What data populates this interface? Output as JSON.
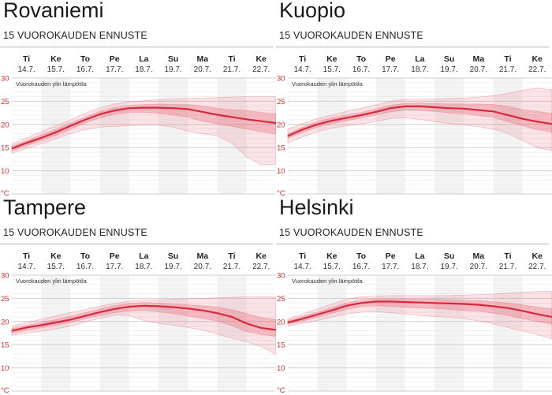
{
  "panels": [
    {
      "title": "Rovaniemi",
      "subtitle": "15 VUOROKAUDEN ENNUSTE"
    },
    {
      "title": "Kuopio",
      "subtitle": "15 VUOROKAUDEN ENNUSTE"
    },
    {
      "title": "Tampere",
      "subtitle": "15 VUOROKAUDEN ENNUSTE"
    },
    {
      "title": "Helsinki",
      "subtitle": "15 VUOROKAUDEN ENNUSTE"
    }
  ],
  "colors": {
    "line": "#d8283c",
    "band": "#e8586a",
    "axis": "#d32f2f",
    "shade": "#f3f3f3",
    "grid": "#dddddd"
  },
  "chart_data": [
    {
      "type": "line",
      "chart_label": "Vuorokauden ylin lämpötila",
      "days": [
        "Ti",
        "Ke",
        "To",
        "Pe",
        "La",
        "Su",
        "Ma",
        "Ti",
        "Ke"
      ],
      "dates": [
        "14.7.",
        "15.7.",
        "16.7.",
        "17.7.",
        "18.7.",
        "19.7.",
        "20.7.",
        "21.7.",
        "22.7."
      ],
      "yticks": [
        "30",
        "25",
        "20",
        "15",
        "10"
      ],
      "unit": "°C",
      "ylim": [
        5,
        30
      ],
      "x": [
        0,
        0.5,
        1,
        1.5,
        2,
        2.5,
        3,
        3.5,
        4,
        4.5,
        5,
        5.5,
        6,
        6.5,
        7,
        7.5,
        8,
        8.5,
        9
      ],
      "series": [
        {
          "role": "median",
          "values": [
            14.8,
            16.0,
            17.1,
            18.3,
            19.7,
            21.0,
            22.2,
            23.0,
            23.5,
            23.6,
            23.6,
            23.5,
            23.3,
            22.7,
            22.1,
            21.6,
            21.1,
            20.7,
            20.3
          ]
        },
        {
          "role": "inner_low",
          "values": [
            14.3,
            15.4,
            16.5,
            17.6,
            19.0,
            20.3,
            21.4,
            22.2,
            22.6,
            22.6,
            22.4,
            22.0,
            21.5,
            20.7,
            20.1,
            19.6,
            19.0,
            18.4,
            17.9
          ]
        },
        {
          "role": "inner_high",
          "values": [
            15.3,
            16.5,
            17.7,
            18.9,
            20.3,
            21.6,
            22.8,
            23.6,
            24.1,
            24.3,
            24.4,
            24.3,
            24.3,
            24.0,
            23.5,
            23.2,
            23.0,
            22.6,
            22.3
          ]
        },
        {
          "role": "outer_low",
          "values": [
            13.8,
            14.8,
            15.8,
            16.9,
            18.0,
            18.9,
            19.4,
            19.6,
            19.7,
            19.8,
            19.8,
            19.4,
            18.5,
            18.0,
            17.5,
            16.0,
            13.0,
            11.3,
            11.4
          ]
        },
        {
          "role": "outer_high",
          "values": [
            15.8,
            17.1,
            18.4,
            19.7,
            21.0,
            22.4,
            23.6,
            24.4,
            24.9,
            25.1,
            25.3,
            25.5,
            25.6,
            25.7,
            25.8,
            25.9,
            26.0,
            26.0,
            26.0
          ]
        }
      ]
    },
    {
      "type": "line",
      "chart_label": "Vuorokauden ylin lämpötila",
      "days": [
        "Ti",
        "Ke",
        "To",
        "Pe",
        "La",
        "Su",
        "Ma",
        "Ti",
        "Ke"
      ],
      "dates": [
        "14.7.",
        "15.7.",
        "16.7.",
        "17.7.",
        "18.7.",
        "19.7.",
        "20.7.",
        "21.7.",
        "22.7."
      ],
      "yticks": [
        "30",
        "25",
        "20",
        "15",
        "10"
      ],
      "unit": "°C",
      "ylim": [
        5,
        30
      ],
      "x": [
        0,
        0.5,
        1,
        1.5,
        2,
        2.5,
        3,
        3.5,
        4,
        4.5,
        5,
        5.5,
        6,
        6.5,
        7,
        7.5,
        8,
        8.5,
        9
      ],
      "series": [
        {
          "role": "median",
          "values": [
            17.5,
            18.9,
            20.0,
            20.8,
            21.4,
            22.0,
            22.7,
            23.5,
            23.9,
            23.9,
            23.7,
            23.5,
            23.4,
            23.1,
            22.8,
            22.0,
            21.2,
            20.6,
            20.1
          ]
        },
        {
          "role": "inner_low",
          "values": [
            17.0,
            18.3,
            19.4,
            20.2,
            20.8,
            21.4,
            22.0,
            22.7,
            23.1,
            23.0,
            22.8,
            22.5,
            22.3,
            21.9,
            21.5,
            20.6,
            19.7,
            18.9,
            18.3
          ]
        },
        {
          "role": "inner_high",
          "values": [
            18.0,
            19.4,
            20.6,
            21.4,
            22.0,
            22.6,
            23.3,
            24.1,
            24.5,
            24.6,
            24.5,
            24.4,
            24.4,
            24.4,
            24.3,
            23.9,
            23.2,
            22.8,
            22.4
          ]
        },
        {
          "role": "outer_low",
          "values": [
            16.0,
            17.3,
            18.4,
            19.2,
            19.7,
            20.1,
            20.6,
            21.3,
            21.4,
            21.1,
            20.6,
            20.2,
            19.9,
            19.5,
            19.0,
            18.0,
            16.5,
            15.0,
            14.3
          ]
        },
        {
          "role": "outer_high",
          "values": [
            19.0,
            20.2,
            21.3,
            22.0,
            22.8,
            23.5,
            24.2,
            25.0,
            25.4,
            25.5,
            25.5,
            25.6,
            25.7,
            25.9,
            26.2,
            26.7,
            27.4,
            27.8,
            27.5
          ]
        }
      ]
    },
    {
      "type": "line",
      "chart_label": "Vuorokauden ylin lämpötila",
      "days": [
        "Ti",
        "Ke",
        "To",
        "Pe",
        "La",
        "Su",
        "Ma",
        "Ti",
        "Ke"
      ],
      "dates": [
        "14.7.",
        "15.7.",
        "16.7.",
        "17.7.",
        "18.7.",
        "19.7.",
        "20.7.",
        "21.7.",
        "22.7."
      ],
      "yticks": [
        "30",
        "25",
        "20",
        "15",
        "10"
      ],
      "unit": "°C",
      "ylim": [
        5,
        30
      ],
      "x": [
        0,
        0.5,
        1,
        1.5,
        2,
        2.5,
        3,
        3.5,
        4,
        4.5,
        5,
        5.5,
        6,
        6.5,
        7,
        7.5,
        8,
        8.5,
        9
      ],
      "series": [
        {
          "role": "median",
          "values": [
            18.0,
            18.7,
            19.2,
            19.8,
            20.4,
            21.2,
            22.0,
            22.7,
            23.2,
            23.4,
            23.3,
            23.1,
            22.8,
            22.4,
            21.8,
            21.0,
            19.6,
            18.6,
            18.2
          ]
        },
        {
          "role": "inner_low",
          "values": [
            17.5,
            18.1,
            18.6,
            19.2,
            19.8,
            20.6,
            21.3,
            21.9,
            22.3,
            22.4,
            22.1,
            21.7,
            21.2,
            20.7,
            20.1,
            19.1,
            17.8,
            17.2,
            16.8
          ]
        },
        {
          "role": "inner_high",
          "values": [
            18.5,
            19.2,
            19.8,
            20.4,
            21.1,
            21.9,
            22.7,
            23.4,
            23.9,
            24.1,
            24.0,
            23.8,
            23.6,
            23.4,
            23.1,
            22.6,
            21.7,
            20.9,
            20.4
          ]
        },
        {
          "role": "outer_low",
          "values": [
            17.0,
            17.5,
            17.9,
            18.4,
            19.0,
            19.9,
            20.7,
            21.4,
            21.3,
            20.2,
            19.6,
            19.2,
            18.7,
            18.2,
            17.3,
            16.4,
            15.6,
            14.6,
            12.9
          ]
        },
        {
          "role": "outer_high",
          "values": [
            19.0,
            19.8,
            20.5,
            21.2,
            21.9,
            22.6,
            23.3,
            23.9,
            24.4,
            24.6,
            24.7,
            24.8,
            24.9,
            25.0,
            25.1,
            25.2,
            25.3,
            25.3,
            25.3
          ]
        }
      ]
    },
    {
      "type": "line",
      "chart_label": "Vuorokauden ylin lämpötila",
      "days": [
        "Ti",
        "Ke",
        "To",
        "Pe",
        "La",
        "Su",
        "Ma",
        "Ti",
        "Ke"
      ],
      "dates": [
        "14.7.",
        "15.7.",
        "16.7.",
        "17.7.",
        "18.7.",
        "19.7.",
        "20.7.",
        "21.7.",
        "22.7."
      ],
      "yticks": [
        "30",
        "25",
        "20",
        "15",
        "10"
      ],
      "unit": "°C",
      "ylim": [
        5,
        30
      ],
      "x": [
        0,
        0.5,
        1,
        1.5,
        2,
        2.5,
        3,
        3.5,
        4,
        4.5,
        5,
        5.5,
        6,
        6.5,
        7,
        7.5,
        8,
        8.5,
        9
      ],
      "series": [
        {
          "role": "median",
          "values": [
            19.8,
            20.6,
            21.5,
            22.4,
            23.4,
            24.0,
            24.3,
            24.3,
            24.2,
            24.1,
            24.0,
            23.9,
            23.8,
            23.6,
            23.3,
            22.9,
            22.3,
            21.6,
            21.0
          ]
        },
        {
          "role": "inner_low",
          "values": [
            19.4,
            20.1,
            20.9,
            21.8,
            22.6,
            23.2,
            23.4,
            23.3,
            23.1,
            22.9,
            22.8,
            22.6,
            22.4,
            22.2,
            21.8,
            21.3,
            20.6,
            20.0,
            19.4
          ]
        },
        {
          "role": "inner_high",
          "values": [
            20.2,
            21.1,
            22.0,
            23.0,
            24.0,
            24.6,
            24.9,
            24.9,
            24.9,
            24.8,
            24.8,
            24.7,
            24.6,
            24.5,
            24.3,
            24.0,
            23.6,
            23.1,
            22.7
          ]
        },
        {
          "role": "outer_low",
          "values": [
            19.0,
            19.6,
            20.2,
            21.0,
            21.6,
            22.0,
            22.1,
            21.9,
            21.6,
            21.3,
            21.1,
            20.9,
            20.6,
            20.1,
            19.5,
            18.7,
            18.0,
            17.2,
            16.2
          ]
        },
        {
          "role": "outer_high",
          "values": [
            20.6,
            21.6,
            22.7,
            23.8,
            24.8,
            25.3,
            25.5,
            25.6,
            25.6,
            25.6,
            25.6,
            25.6,
            25.7,
            25.8,
            25.9,
            26.1,
            26.3,
            26.5,
            26.5
          ]
        }
      ]
    }
  ]
}
